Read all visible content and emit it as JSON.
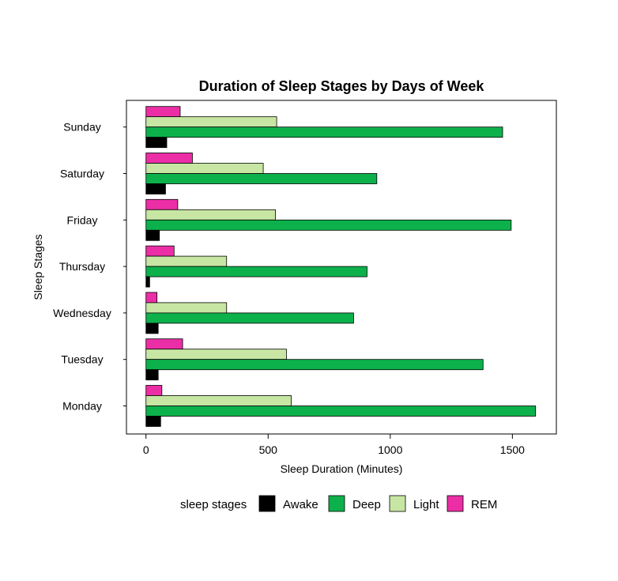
{
  "chart_data": {
    "type": "bar",
    "orientation": "horizontal",
    "title": "Duration of Sleep Stages by Days of Week",
    "xlabel": "Sleep Duration (Minutes)",
    "ylabel": "Sleep Stages",
    "categories": [
      "Monday",
      "Tuesday",
      "Wednesday",
      "Thursday",
      "Friday",
      "Saturday",
      "Sunday"
    ],
    "series": [
      {
        "name": "Awake",
        "color": "#000000",
        "values": [
          60,
          50,
          50,
          15,
          55,
          80,
          85
        ]
      },
      {
        "name": "Deep",
        "color": "#0db14b",
        "values": [
          1595,
          1380,
          850,
          905,
          1495,
          945,
          1460
        ]
      },
      {
        "name": "Light",
        "color": "#c7e6a3",
        "values": [
          595,
          575,
          330,
          330,
          530,
          480,
          535
        ]
      },
      {
        "name": "REM",
        "color": "#ec2ea6",
        "values": [
          65,
          150,
          45,
          115,
          130,
          190,
          140
        ]
      }
    ],
    "xlim": [
      -80,
      1680
    ],
    "xticks": [
      0,
      500,
      1000,
      1500
    ],
    "legend": {
      "title": "sleep stages",
      "placement": "bottom"
    },
    "grid": false
  }
}
